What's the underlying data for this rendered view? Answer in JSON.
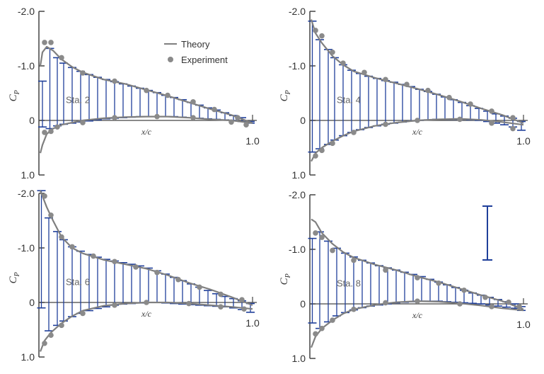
{
  "colors": {
    "theory": "#7f7f7f",
    "experiment": "#8a8a8a",
    "bars": "#1f3f9a",
    "axes": "#444444",
    "text": "#333333"
  },
  "legend": {
    "theory": "Theory",
    "experiment": "Experiment"
  },
  "chart_data": [
    {
      "type": "line",
      "station": "Sta. 2",
      "ylabel": "C_P",
      "xlabel": "x/c",
      "yticks": [
        "-2.0",
        "-1.0",
        "0",
        "1.0"
      ],
      "xtick_end": "1.0",
      "xlim": [
        0,
        1
      ],
      "ylim": [
        1,
        -2
      ],
      "theory_upper": [
        [
          0,
          -1.0
        ],
        [
          0.01,
          -1.25
        ],
        [
          0.03,
          -1.35
        ],
        [
          0.06,
          -1.28
        ],
        [
          0.1,
          -1.12
        ],
        [
          0.15,
          -0.98
        ],
        [
          0.2,
          -0.88
        ],
        [
          0.3,
          -0.75
        ],
        [
          0.4,
          -0.67
        ],
        [
          0.5,
          -0.56
        ],
        [
          0.6,
          -0.45
        ],
        [
          0.7,
          -0.33
        ],
        [
          0.8,
          -0.21
        ],
        [
          0.9,
          -0.1
        ],
        [
          1.0,
          0.05
        ]
      ],
      "theory_lower": [
        [
          0,
          0.6
        ],
        [
          0.01,
          0.45
        ],
        [
          0.03,
          0.25
        ],
        [
          0.06,
          0.15
        ],
        [
          0.1,
          0.08
        ],
        [
          0.15,
          0.04
        ],
        [
          0.2,
          0.0
        ],
        [
          0.3,
          -0.04
        ],
        [
          0.4,
          -0.06
        ],
        [
          0.5,
          -0.07
        ],
        [
          0.6,
          -0.07
        ],
        [
          0.7,
          -0.05
        ],
        [
          0.8,
          -0.02
        ],
        [
          0.9,
          0.0
        ],
        [
          1.0,
          0.05
        ]
      ],
      "exp_upper": [
        [
          0.02,
          -1.43
        ],
        [
          0.05,
          -1.43
        ],
        [
          0.1,
          -1.15
        ],
        [
          0.2,
          -0.87
        ],
        [
          0.35,
          -0.72
        ],
        [
          0.5,
          -0.55
        ],
        [
          0.6,
          -0.46
        ],
        [
          0.72,
          -0.34
        ],
        [
          0.82,
          -0.2
        ],
        [
          0.93,
          -0.05
        ]
      ],
      "exp_lower": [
        [
          0.02,
          0.22
        ],
        [
          0.05,
          0.2
        ],
        [
          0.08,
          0.12
        ],
        [
          0.2,
          0.04
        ],
        [
          0.35,
          -0.05
        ],
        [
          0.55,
          -0.07
        ],
        [
          0.72,
          -0.05
        ],
        [
          0.9,
          0.03
        ],
        [
          0.97,
          0.08
        ]
      ],
      "bars": [
        [
          0.01,
          -0.72,
          0.12
        ],
        [
          0.045,
          -1.32,
          0.15
        ],
        [
          0.08,
          -1.15,
          0.1
        ],
        [
          0.11,
          -1.05,
          0.07
        ],
        [
          0.15,
          -0.97,
          0.05
        ],
        [
          0.19,
          -0.9,
          0.03
        ],
        [
          0.23,
          -0.84,
          0.01
        ],
        [
          0.27,
          -0.79,
          -0.01
        ],
        [
          0.31,
          -0.75,
          -0.03
        ],
        [
          0.35,
          -0.71,
          -0.04
        ],
        [
          0.39,
          -0.67,
          -0.05
        ],
        [
          0.43,
          -0.63,
          -0.06
        ],
        [
          0.47,
          -0.59,
          -0.07
        ],
        [
          0.51,
          -0.55,
          -0.07
        ],
        [
          0.55,
          -0.51,
          -0.07
        ],
        [
          0.59,
          -0.46,
          -0.07
        ],
        [
          0.63,
          -0.42,
          -0.07
        ],
        [
          0.67,
          -0.38,
          -0.06
        ],
        [
          0.71,
          -0.33,
          -0.05
        ],
        [
          0.75,
          -0.28,
          -0.04
        ],
        [
          0.79,
          -0.23,
          -0.03
        ],
        [
          0.83,
          -0.19,
          -0.02
        ],
        [
          0.87,
          -0.14,
          -0.01
        ],
        [
          0.91,
          -0.09,
          0.0
        ],
        [
          0.95,
          -0.05,
          0.02
        ],
        [
          0.99,
          0.02,
          0.05
        ]
      ]
    },
    {
      "type": "line",
      "station": "Sta. 4",
      "ylabel": "C_P",
      "xlabel": "x/c",
      "yticks": [
        "-2.0",
        "-1.0",
        "0",
        "1.0"
      ],
      "xtick_end": "1.0",
      "xlim": [
        0,
        1
      ],
      "ylim": [
        1,
        -2
      ],
      "theory_upper": [
        [
          0,
          -1.85
        ],
        [
          0.02,
          -1.6
        ],
        [
          0.05,
          -1.42
        ],
        [
          0.1,
          -1.18
        ],
        [
          0.15,
          -1.02
        ],
        [
          0.2,
          -0.9
        ],
        [
          0.3,
          -0.78
        ],
        [
          0.4,
          -0.68
        ],
        [
          0.5,
          -0.58
        ],
        [
          0.6,
          -0.47
        ],
        [
          0.7,
          -0.35
        ],
        [
          0.8,
          -0.22
        ],
        [
          0.9,
          -0.1
        ],
        [
          1.0,
          0.05
        ]
      ],
      "theory_lower": [
        [
          0,
          0.75
        ],
        [
          0.02,
          0.6
        ],
        [
          0.05,
          0.5
        ],
        [
          0.1,
          0.38
        ],
        [
          0.15,
          0.28
        ],
        [
          0.2,
          0.2
        ],
        [
          0.3,
          0.1
        ],
        [
          0.4,
          0.04
        ],
        [
          0.5,
          0.0
        ],
        [
          0.6,
          -0.02
        ],
        [
          0.7,
          -0.03
        ],
        [
          0.8,
          -0.01
        ],
        [
          0.9,
          0.03
        ],
        [
          1.0,
          0.08
        ]
      ],
      "exp_upper": [
        [
          0.02,
          -1.65
        ],
        [
          0.05,
          -1.55
        ],
        [
          0.1,
          -1.25
        ],
        [
          0.15,
          -1.05
        ],
        [
          0.25,
          -0.88
        ],
        [
          0.35,
          -0.75
        ],
        [
          0.45,
          -0.66
        ],
        [
          0.55,
          -0.55
        ],
        [
          0.65,
          -0.42
        ],
        [
          0.75,
          -0.3
        ],
        [
          0.85,
          -0.17
        ],
        [
          0.95,
          -0.05
        ]
      ],
      "exp_lower": [
        [
          0.02,
          0.65
        ],
        [
          0.05,
          0.55
        ],
        [
          0.1,
          0.42
        ],
        [
          0.2,
          0.22
        ],
        [
          0.35,
          0.07
        ],
        [
          0.5,
          0.0
        ],
        [
          0.7,
          -0.02
        ],
        [
          0.85,
          0.05
        ],
        [
          0.95,
          0.15
        ]
      ],
      "bars": [
        [
          0.005,
          -1.82,
          0.58
        ],
        [
          0.04,
          -1.48,
          0.52
        ],
        [
          0.08,
          -1.3,
          0.44
        ],
        [
          0.11,
          -1.15,
          0.36
        ],
        [
          0.15,
          -1.02,
          0.28
        ],
        [
          0.19,
          -0.92,
          0.22
        ],
        [
          0.23,
          -0.86,
          0.17
        ],
        [
          0.27,
          -0.81,
          0.13
        ],
        [
          0.31,
          -0.77,
          0.1
        ],
        [
          0.35,
          -0.73,
          0.07
        ],
        [
          0.39,
          -0.7,
          0.05
        ],
        [
          0.43,
          -0.66,
          0.03
        ],
        [
          0.47,
          -0.62,
          0.01
        ],
        [
          0.51,
          -0.57,
          0.0
        ],
        [
          0.55,
          -0.53,
          -0.01
        ],
        [
          0.59,
          -0.48,
          -0.02
        ],
        [
          0.63,
          -0.43,
          -0.02
        ],
        [
          0.67,
          -0.38,
          -0.02
        ],
        [
          0.71,
          -0.33,
          -0.02
        ],
        [
          0.75,
          -0.27,
          -0.01
        ],
        [
          0.79,
          -0.22,
          0.0
        ],
        [
          0.83,
          -0.17,
          0.02
        ],
        [
          0.87,
          -0.12,
          0.05
        ],
        [
          0.91,
          -0.08,
          0.08
        ],
        [
          0.95,
          -0.04,
          0.12
        ],
        [
          0.99,
          0.02,
          0.18
        ]
      ]
    },
    {
      "type": "line",
      "station": "Sta. 6",
      "ylabel": "C_P",
      "xlabel": "x/c",
      "yticks": [
        "-2.0",
        "-1.0",
        "0",
        "1.0"
      ],
      "xtick_end": "1.0",
      "xlim": [
        0,
        1
      ],
      "ylim": [
        1,
        -2
      ],
      "theory_upper": [
        [
          0,
          -2.05
        ],
        [
          0.03,
          -1.75
        ],
        [
          0.06,
          -1.5
        ],
        [
          0.1,
          -1.2
        ],
        [
          0.15,
          -1.0
        ],
        [
          0.2,
          -0.9
        ],
        [
          0.3,
          -0.78
        ],
        [
          0.4,
          -0.7
        ],
        [
          0.5,
          -0.62
        ],
        [
          0.6,
          -0.5
        ],
        [
          0.7,
          -0.36
        ],
        [
          0.8,
          -0.24
        ],
        [
          0.9,
          -0.1
        ],
        [
          1.0,
          0.05
        ]
      ],
      "theory_lower": [
        [
          0,
          0.9
        ],
        [
          0.02,
          0.7
        ],
        [
          0.05,
          0.55
        ],
        [
          0.1,
          0.38
        ],
        [
          0.15,
          0.25
        ],
        [
          0.2,
          0.15
        ],
        [
          0.3,
          0.06
        ],
        [
          0.4,
          0.02
        ],
        [
          0.5,
          0.0
        ],
        [
          0.6,
          0.0
        ],
        [
          0.7,
          0.02
        ],
        [
          0.8,
          0.05
        ],
        [
          0.9,
          0.08
        ],
        [
          1.0,
          0.12
        ]
      ],
      "exp_upper": [
        [
          0.02,
          -1.95
        ],
        [
          0.05,
          -1.6
        ],
        [
          0.1,
          -1.2
        ],
        [
          0.15,
          -1.02
        ],
        [
          0.25,
          -0.85
        ],
        [
          0.35,
          -0.75
        ],
        [
          0.45,
          -0.65
        ],
        [
          0.55,
          -0.55
        ],
        [
          0.65,
          -0.42
        ],
        [
          0.75,
          -0.28
        ],
        [
          0.85,
          -0.15
        ],
        [
          0.95,
          -0.05
        ]
      ],
      "exp_lower": [
        [
          0.02,
          0.75
        ],
        [
          0.05,
          0.6
        ],
        [
          0.1,
          0.42
        ],
        [
          0.2,
          0.2
        ],
        [
          0.35,
          0.05
        ],
        [
          0.5,
          0.0
        ],
        [
          0.7,
          0.02
        ],
        [
          0.85,
          0.08
        ],
        [
          0.96,
          0.12
        ]
      ],
      "bars": [
        [
          0.005,
          -2.05,
          0.1
        ],
        [
          0.04,
          -1.55,
          0.52
        ],
        [
          0.08,
          -1.3,
          0.42
        ],
        [
          0.11,
          -1.15,
          0.34
        ],
        [
          0.15,
          -1.02,
          0.26
        ],
        [
          0.19,
          -0.94,
          0.2
        ],
        [
          0.23,
          -0.88,
          0.15
        ],
        [
          0.27,
          -0.83,
          0.11
        ],
        [
          0.31,
          -0.79,
          0.08
        ],
        [
          0.35,
          -0.76,
          0.05
        ],
        [
          0.39,
          -0.73,
          0.03
        ],
        [
          0.43,
          -0.7,
          0.02
        ],
        [
          0.47,
          -0.67,
          0.01
        ],
        [
          0.51,
          -0.63,
          0.0
        ],
        [
          0.55,
          -0.58,
          0.0
        ],
        [
          0.59,
          -0.52,
          0.01
        ],
        [
          0.63,
          -0.46,
          0.02
        ],
        [
          0.67,
          -0.4,
          0.03
        ],
        [
          0.71,
          -0.34,
          0.04
        ],
        [
          0.75,
          -0.28,
          0.05
        ],
        [
          0.79,
          -0.22,
          0.06
        ],
        [
          0.83,
          -0.16,
          0.07
        ],
        [
          0.87,
          -0.11,
          0.08
        ],
        [
          0.91,
          -0.07,
          0.1
        ],
        [
          0.95,
          -0.03,
          0.13
        ],
        [
          0.99,
          0.02,
          0.18
        ]
      ]
    },
    {
      "type": "line",
      "station": "Sta. 8",
      "ylabel": "C_P",
      "xlabel": "x/c",
      "yticks": [
        "-2.0",
        "-1.0",
        "0",
        "1.0"
      ],
      "xtick_end": "1.0",
      "xlim": [
        0,
        1
      ],
      "ylim": [
        1,
        -2
      ],
      "theory_upper": [
        [
          0,
          -1.55
        ],
        [
          0.02,
          -1.5
        ],
        [
          0.05,
          -1.3
        ],
        [
          0.1,
          -1.1
        ],
        [
          0.15,
          -0.95
        ],
        [
          0.2,
          -0.85
        ],
        [
          0.3,
          -0.72
        ],
        [
          0.4,
          -0.62
        ],
        [
          0.5,
          -0.5
        ],
        [
          0.6,
          -0.4
        ],
        [
          0.7,
          -0.28
        ],
        [
          0.8,
          -0.16
        ],
        [
          0.9,
          -0.05
        ],
        [
          1.0,
          0.1
        ]
      ],
      "theory_lower": [
        [
          0,
          0.8
        ],
        [
          0.02,
          0.6
        ],
        [
          0.05,
          0.45
        ],
        [
          0.1,
          0.3
        ],
        [
          0.15,
          0.18
        ],
        [
          0.2,
          0.1
        ],
        [
          0.3,
          0.02
        ],
        [
          0.4,
          -0.03
        ],
        [
          0.5,
          -0.05
        ],
        [
          0.6,
          -0.04
        ],
        [
          0.7,
          -0.01
        ],
        [
          0.8,
          0.03
        ],
        [
          0.9,
          0.08
        ],
        [
          1.0,
          0.12
        ]
      ],
      "exp_upper": [
        [
          0.02,
          -1.3
        ],
        [
          0.05,
          -1.22
        ],
        [
          0.1,
          -0.98
        ],
        [
          0.2,
          -0.8
        ],
        [
          0.35,
          -0.62
        ],
        [
          0.5,
          -0.48
        ],
        [
          0.6,
          -0.38
        ],
        [
          0.72,
          -0.25
        ],
        [
          0.82,
          -0.12
        ],
        [
          0.93,
          -0.03
        ]
      ],
      "exp_lower": [
        [
          0.02,
          0.55
        ],
        [
          0.05,
          0.45
        ],
        [
          0.1,
          0.3
        ],
        [
          0.2,
          0.1
        ],
        [
          0.35,
          -0.02
        ],
        [
          0.5,
          -0.05
        ],
        [
          0.7,
          0.0
        ],
        [
          0.85,
          0.05
        ],
        [
          0.98,
          0.05
        ]
      ],
      "bars": [
        [
          0.005,
          -1.2,
          0.35
        ],
        [
          0.04,
          -1.32,
          0.45
        ],
        [
          0.08,
          -1.15,
          0.33
        ],
        [
          0.12,
          -1.02,
          0.22
        ],
        [
          0.16,
          -0.93,
          0.16
        ],
        [
          0.2,
          -0.86,
          0.11
        ],
        [
          0.24,
          -0.8,
          0.07
        ],
        [
          0.28,
          -0.75,
          0.04
        ],
        [
          0.32,
          -0.7,
          0.02
        ],
        [
          0.36,
          -0.66,
          0.0
        ],
        [
          0.4,
          -0.62,
          -0.02
        ],
        [
          0.44,
          -0.58,
          -0.03
        ],
        [
          0.48,
          -0.54,
          -0.04
        ],
        [
          0.52,
          -0.5,
          -0.05
        ],
        [
          0.56,
          -0.45,
          -0.05
        ],
        [
          0.6,
          -0.4,
          -0.05
        ],
        [
          0.64,
          -0.35,
          -0.04
        ],
        [
          0.68,
          -0.3,
          -0.03
        ],
        [
          0.72,
          -0.25,
          -0.02
        ],
        [
          0.76,
          -0.2,
          -0.01
        ],
        [
          0.8,
          -0.16,
          0.0
        ],
        [
          0.84,
          -0.12,
          0.02
        ],
        [
          0.88,
          -0.08,
          0.04
        ],
        [
          0.92,
          -0.04,
          0.06
        ],
        [
          0.96,
          0.0,
          0.08
        ],
        [
          0.99,
          0.05,
          0.12
        ]
      ]
    }
  ]
}
